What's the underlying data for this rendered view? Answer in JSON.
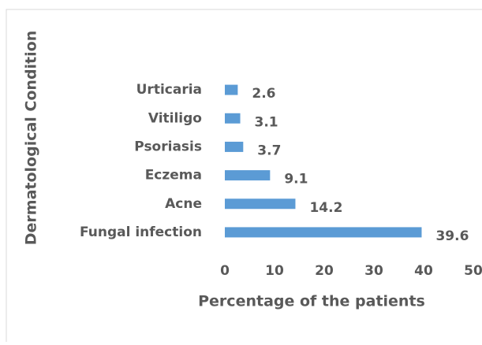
{
  "chart_data": {
    "type": "bar",
    "orientation": "horizontal",
    "x_label": "Percentage of the patients",
    "y_label": "Dermatological Condition",
    "categories": [
      "Fungal infection",
      "Acne",
      "Eczema",
      "Psoriasis",
      "Vitiligo",
      "Urticaria"
    ],
    "values": [
      39.6,
      14.2,
      9.1,
      3.7,
      3.1,
      2.6
    ],
    "color": "#5b9bd5",
    "xlim": [
      0,
      50
    ],
    "xticks": [
      0,
      10,
      20,
      30,
      40,
      50
    ],
    "grid": false
  }
}
